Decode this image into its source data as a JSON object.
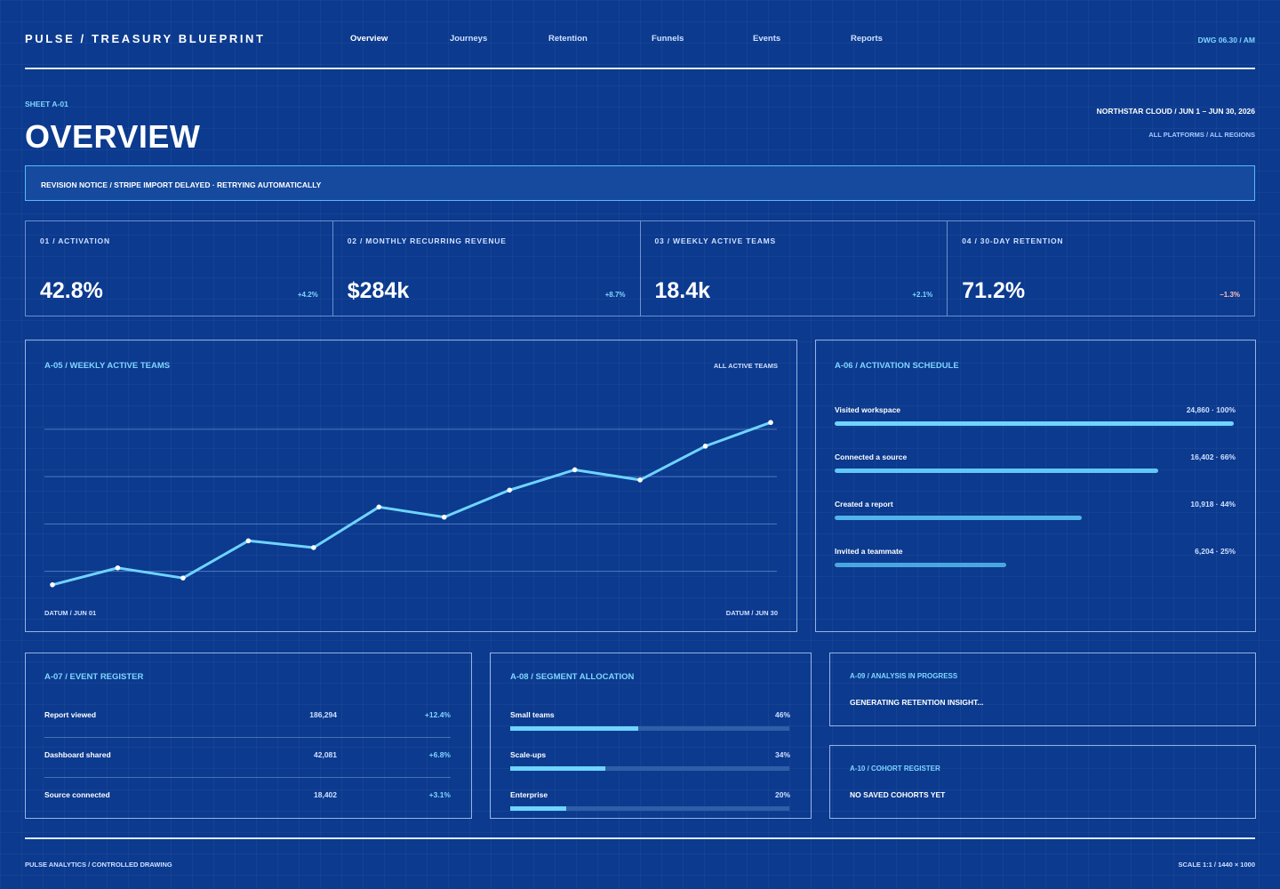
{
  "header": {
    "brand": "PULSE / TREASURY BLUEPRINT",
    "nav": [
      "Overview",
      "Journeys",
      "Retention",
      "Funnels",
      "Events",
      "Reports"
    ],
    "drawing": "DWG 06.30 / AM"
  },
  "page": {
    "sheet": "SHEET A-01",
    "title": "OVERVIEW",
    "meta_primary": "NORTHSTAR CLOUD / JUN 1 – JUN 30, 2026",
    "meta_secondary": "ALL PLATFORMS / ALL REGIONS"
  },
  "notice": "REVISION NOTICE / STRIPE IMPORT DELAYED · RETRYING AUTOMATICALLY",
  "kpis": [
    {
      "label": "01 / ACTIVATION",
      "value": "42.8%",
      "delta": "+4.2%",
      "color": "#7fd6ff"
    },
    {
      "label": "02 / MONTHLY RECURRING REVENUE",
      "value": "$284k",
      "delta": "+8.7%",
      "color": "#7fd6ff"
    },
    {
      "label": "03 / WEEKLY ACTIVE TEAMS",
      "value": "18.4k",
      "delta": "+2.1%",
      "color": "#7fd6ff"
    },
    {
      "label": "04 / 30-DAY RETENTION",
      "value": "71.2%",
      "delta": "−1.3%",
      "color": "#ffc0b8"
    }
  ],
  "weekly_chart": {
    "title": "A-05 / WEEKLY ACTIVE TEAMS",
    "filter": "ALL ACTIVE TEAMS",
    "start_label": "DATUM / JUN 01",
    "end_label": "DATUM / JUN 30"
  },
  "chart_data": {
    "type": "line",
    "values": [
      16.2,
      16.7,
      16.4,
      17.5,
      17.3,
      18.5,
      18.2,
      19.0,
      19.6,
      19.3,
      20.3,
      21.0
    ],
    "ylim": [
      15.8,
      21.9
    ],
    "grid_lines": [
      16.6,
      18.0,
      19.4,
      20.8
    ]
  },
  "activation": {
    "title": "A-06 / ACTIVATION SCHEDULE",
    "steps": [
      {
        "label": "Visited workspace",
        "value": "24,860 · 100%",
        "pct": 1.0,
        "color": "#6fd4ff"
      },
      {
        "label": "Connected a source",
        "value": "16,402 · 66%",
        "pct": 0.81,
        "color": "#63c7f7"
      },
      {
        "label": "Created a report",
        "value": "10,918 · 44%",
        "pct": 0.62,
        "color": "#52b4ec"
      },
      {
        "label": "Invited a teammate",
        "value": "6,204 · 25%",
        "pct": 0.43,
        "color": "#4aa6e2"
      }
    ]
  },
  "events": {
    "title": "A-07 / EVENT REGISTER",
    "rows": [
      {
        "label": "Report viewed",
        "count": "186,294",
        "delta": "+12.4%"
      },
      {
        "label": "Dashboard shared",
        "count": "42,081",
        "delta": "+6.8%"
      },
      {
        "label": "Source connected",
        "count": "18,402",
        "delta": "+3.1%"
      }
    ]
  },
  "segments": {
    "title": "A-08 / SEGMENT ALLOCATION",
    "rows": [
      {
        "label": "Small teams",
        "value": "46%",
        "pct": 0.46
      },
      {
        "label": "Scale-ups",
        "value": "34%",
        "pct": 0.34
      },
      {
        "label": "Enterprise",
        "value": "20%",
        "pct": 0.2
      }
    ]
  },
  "analysis": {
    "title": "A-09 / ANALYSIS IN PROGRESS",
    "text": "GENERATING RETENTION INSIGHT..."
  },
  "cohorts": {
    "title": "A-10 / COHORT REGISTER",
    "text": "NO SAVED COHORTS YET"
  },
  "footer": {
    "left": "PULSE ANALYTICS / CONTROLLED DRAWING",
    "right": "SCALE 1:1 / 1440 × 1000"
  }
}
